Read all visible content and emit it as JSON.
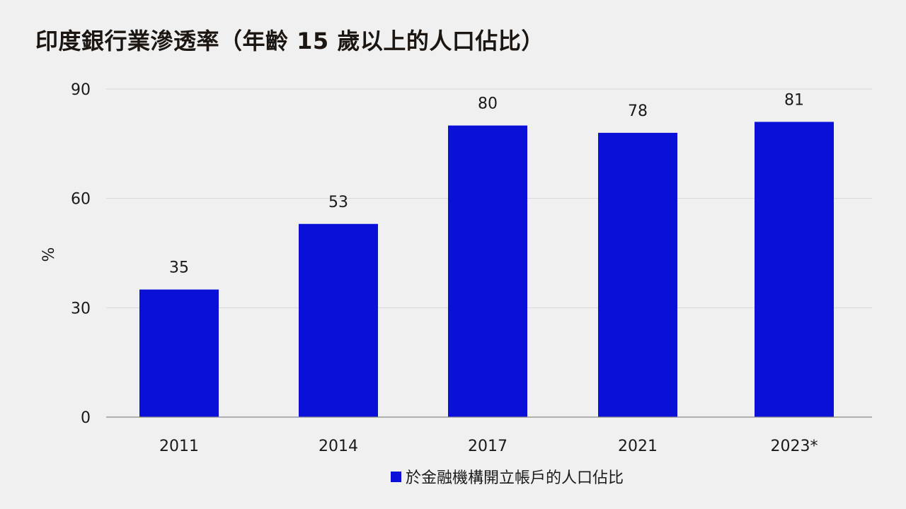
{
  "chart_data": {
    "type": "bar",
    "title": "印度銀行業滲透率（年齡 15 歲以上的人口佔比）",
    "ylabel": "%",
    "xlabel": "",
    "categories": [
      "2011",
      "2014",
      "2017",
      "2021",
      "2023*"
    ],
    "series": [
      {
        "name": "於金融機構開立帳戶的人口佔比",
        "values": [
          35,
          53,
          80,
          78,
          81
        ],
        "color": "#0a10d8"
      }
    ],
    "data_labels": [
      "35",
      "53",
      "80",
      "78",
      "81"
    ],
    "ylim": [
      0,
      90
    ],
    "yticks": [
      "0",
      "30",
      "60",
      "90"
    ],
    "grid": true,
    "legend_position": "bottom"
  }
}
